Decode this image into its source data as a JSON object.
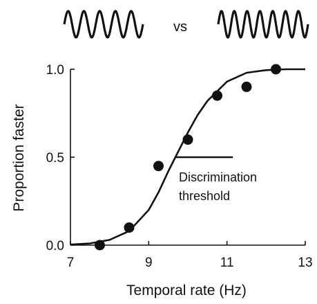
{
  "stimuli": {
    "left_label": "",
    "separator": "vs",
    "right_label": ""
  },
  "chart_data": {
    "type": "scatter",
    "title": "",
    "xlabel": "Temporal rate (Hz)",
    "ylabel": "Proportion faster",
    "xlim": [
      7,
      13
    ],
    "ylim": [
      0.0,
      1.0
    ],
    "x_ticks": [
      7,
      9,
      11,
      13
    ],
    "x_tick_labels": [
      "7",
      "9",
      "11",
      "13"
    ],
    "y_ticks": [
      0.0,
      0.5,
      1.0
    ],
    "y_tick_labels": [
      "0.0",
      "0.5",
      "1.0"
    ],
    "grid": false,
    "legend": "none",
    "series": [
      {
        "kind": "points",
        "x": [
          7.75,
          8.5,
          9.25,
          10.0,
          10.75,
          11.5,
          12.25
        ],
        "y": [
          0.0,
          0.1,
          0.45,
          0.6,
          0.85,
          0.9,
          1.0
        ]
      },
      {
        "kind": "fit-curve",
        "x": [
          7.0,
          7.5,
          8.0,
          8.5,
          9.0,
          9.25,
          9.5,
          9.75,
          10.0,
          10.25,
          10.5,
          11.0,
          11.5,
          12.0,
          12.5,
          13.0
        ],
        "y": [
          0.003,
          0.01,
          0.03,
          0.08,
          0.2,
          0.3,
          0.42,
          0.53,
          0.64,
          0.74,
          0.82,
          0.93,
          0.98,
          0.995,
          1.0,
          1.0
        ]
      }
    ],
    "annotation": {
      "lines": [
        "Discrimination",
        "threshold"
      ],
      "threshold_y": 0.5,
      "threshold_x_range": [
        9.7,
        11.15
      ]
    }
  },
  "colors": {
    "ink": "#111111",
    "background": "#ffffff"
  }
}
